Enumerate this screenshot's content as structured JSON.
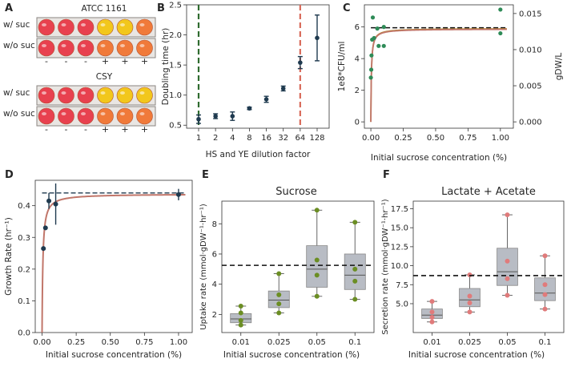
{
  "colors": {
    "navy": "#1f3a4f",
    "green_dot": "#2e8b57",
    "fit": "#c1766a",
    "fit2": "#b5892f",
    "olive": "#6b8e23",
    "pink": "#e07b7b",
    "box": "#b8bcc4",
    "plate_red": "#e8414f",
    "plate_orange": "#f07a3a",
    "plate_yellow": "#f2c71c",
    "dash_green": "#2f6b2f",
    "dash_red": "#d86a5a"
  },
  "panelA": {
    "label": "A",
    "strains": [
      {
        "name": "ATCC 1161",
        "rows": [
          {
            "label": "w/ suc",
            "wells": [
              "red",
              "red",
              "red",
              "yellow",
              "yellow",
              "orange"
            ]
          },
          {
            "label": "w/o suc",
            "wells": [
              "red",
              "red",
              "red",
              "orange",
              "orange",
              "orange"
            ]
          }
        ],
        "marks": [
          "-",
          "-",
          "-",
          "+",
          "+",
          "+"
        ]
      },
      {
        "name": "CSY",
        "rows": [
          {
            "label": "w/ suc",
            "wells": [
              "red",
              "red",
              "red",
              "yellow",
              "yellow",
              "yellow"
            ]
          },
          {
            "label": "w/o suc",
            "wells": [
              "red",
              "red",
              "red",
              "orange",
              "orange",
              "orange"
            ]
          }
        ],
        "marks": [
          "-",
          "-",
          "-",
          "+",
          "+",
          "+"
        ]
      }
    ]
  },
  "chart_data": [
    {
      "panel": "B",
      "type": "scatter",
      "title": "",
      "xlabel": "HS and YE dilution factor",
      "ylabel": "Doubling time (hr)",
      "x_scale": "log2",
      "x": [
        1,
        2,
        4,
        8,
        16,
        32,
        64,
        128
      ],
      "y": [
        0.6,
        0.65,
        0.65,
        0.78,
        0.93,
        1.11,
        1.54,
        1.95
      ],
      "yerr": [
        0.07,
        0.04,
        0.07,
        0.02,
        0.05,
        0.04,
        0.1,
        0.38
      ],
      "xticks": [
        "1",
        "2",
        "4",
        "8",
        "16",
        "32",
        "64",
        "128"
      ],
      "yticks": [
        "0.5",
        "1.0",
        "1.5",
        "2.0",
        "2.5"
      ],
      "ylim": [
        0.45,
        2.5
      ],
      "vlines": [
        {
          "x": 1,
          "color": "green",
          "style": "dashed"
        },
        {
          "x": 64,
          "color": "red",
          "style": "dashed"
        }
      ]
    },
    {
      "panel": "C",
      "type": "scatter",
      "xlabel": "Initial sucrose concentration (%)",
      "ylabel": "1e8*CFU/ml",
      "ylabel_right": "gDW/L",
      "points": [
        {
          "x": 0.0,
          "y": 2.8
        },
        {
          "x": 0.003,
          "y": 3.3
        },
        {
          "x": 0.005,
          "y": 4.2
        },
        {
          "x": 0.01,
          "y": 5.2
        },
        {
          "x": 0.015,
          "y": 6.6
        },
        {
          "x": 0.025,
          "y": 5.3
        },
        {
          "x": 0.05,
          "y": 5.9
        },
        {
          "x": 0.06,
          "y": 4.8
        },
        {
          "x": 0.1,
          "y": 6.0
        },
        {
          "x": 0.1,
          "y": 4.8
        },
        {
          "x": 1.0,
          "y": 7.1
        },
        {
          "x": 1.0,
          "y": 5.6
        }
      ],
      "fit_plateau": 5.9,
      "dashed_level": 5.95,
      "xticks": [
        "0.00",
        "0.25",
        "0.50",
        "0.75",
        "1.00"
      ],
      "yticks": [
        "0",
        "2",
        "4",
        "6"
      ],
      "yticks_right": [
        "0.000",
        "0.005",
        "0.010",
        "0.015"
      ],
      "xlim": [
        -0.05,
        1.1
      ],
      "ylim": [
        -0.4,
        7.4
      ]
    },
    {
      "panel": "D",
      "type": "scatter",
      "xlabel": "Initial sucrose concentration (%)",
      "ylabel": "Growth Rate (hr⁻¹)",
      "points": [
        {
          "x": 0.01,
          "y": 0.265,
          "err": 0.0
        },
        {
          "x": 0.025,
          "y": 0.33,
          "err": 0.0
        },
        {
          "x": 0.05,
          "y": 0.415,
          "err": 0.025
        },
        {
          "x": 0.1,
          "y": 0.405,
          "err": 0.065
        },
        {
          "x": 1.0,
          "y": 0.435,
          "err": 0.018
        }
      ],
      "fit_plateau": 0.437,
      "dashed_level": 0.44,
      "xticks": [
        "0.00",
        "0.25",
        "0.50",
        "0.75",
        "1.00"
      ],
      "yticks": [
        "0.0",
        "0.1",
        "0.2",
        "0.3",
        "0.4"
      ],
      "xlim": [
        -0.05,
        1.1
      ],
      "ylim": [
        0,
        0.48
      ]
    },
    {
      "panel": "E",
      "type": "box",
      "title": "Sucrose",
      "xlabel": "Initial sucrose concentration (%)",
      "ylabel": "Uptake rate (mmol·gDW⁻¹·hr⁻¹)",
      "categories": [
        "0.01",
        "0.025",
        "0.05",
        "0.1"
      ],
      "boxes": [
        {
          "min": 1.3,
          "q1": 1.45,
          "median": 1.7,
          "q3": 2.05,
          "max": 2.55,
          "points": [
            1.3,
            1.6,
            2.1,
            2.55
          ]
        },
        {
          "min": 2.1,
          "q1": 2.45,
          "median": 2.95,
          "q3": 3.55,
          "max": 4.7,
          "points": [
            2.1,
            2.7,
            3.3,
            4.7
          ]
        },
        {
          "min": 3.2,
          "q1": 3.8,
          "median": 5.0,
          "q3": 6.55,
          "max": 8.9,
          "points": [
            3.2,
            4.6,
            5.6,
            8.9
          ]
        },
        {
          "min": 3.0,
          "q1": 3.65,
          "median": 4.6,
          "q3": 6.0,
          "max": 8.1,
          "points": [
            3.0,
            4.2,
            5.0,
            8.1
          ]
        }
      ],
      "dashed_level": 5.25,
      "yticks": [
        "2",
        "4",
        "6",
        "8"
      ],
      "ylim": [
        0.8,
        9.5
      ]
    },
    {
      "panel": "F",
      "type": "box",
      "title": "Lactate + Acetate",
      "xlabel": "Initial sucrose concentration (%)",
      "ylabel": "Secretion rate (mmol·gDW⁻¹·hr⁻¹)",
      "categories": [
        "0.01",
        "0.025",
        "0.05",
        "0.1"
      ],
      "boxes": [
        {
          "min": 2.6,
          "q1": 3.05,
          "median": 3.5,
          "q3": 4.3,
          "max": 5.3,
          "points": [
            2.6,
            3.2,
            3.9,
            5.3
          ]
        },
        {
          "min": 3.9,
          "q1": 4.6,
          "median": 5.5,
          "q3": 7.0,
          "max": 8.8,
          "points": [
            3.9,
            5.1,
            6.0,
            8.8
          ]
        },
        {
          "min": 6.1,
          "q1": 7.4,
          "median": 9.2,
          "q3": 12.3,
          "max": 16.7,
          "points": [
            6.1,
            8.3,
            10.6,
            16.7
          ]
        },
        {
          "min": 4.3,
          "q1": 5.4,
          "median": 6.4,
          "q3": 8.4,
          "max": 11.3,
          "points": [
            4.3,
            6.2,
            7.5,
            11.3
          ]
        }
      ],
      "dashed_level": 8.7,
      "yticks": [
        "5.0",
        "7.5",
        "10.0",
        "12.5",
        "15.0",
        "17.5"
      ],
      "ylim": [
        1.2,
        18.5
      ]
    }
  ],
  "panel_labels": {
    "B": "B",
    "C": "C",
    "D": "D",
    "E": "E",
    "F": "F"
  }
}
